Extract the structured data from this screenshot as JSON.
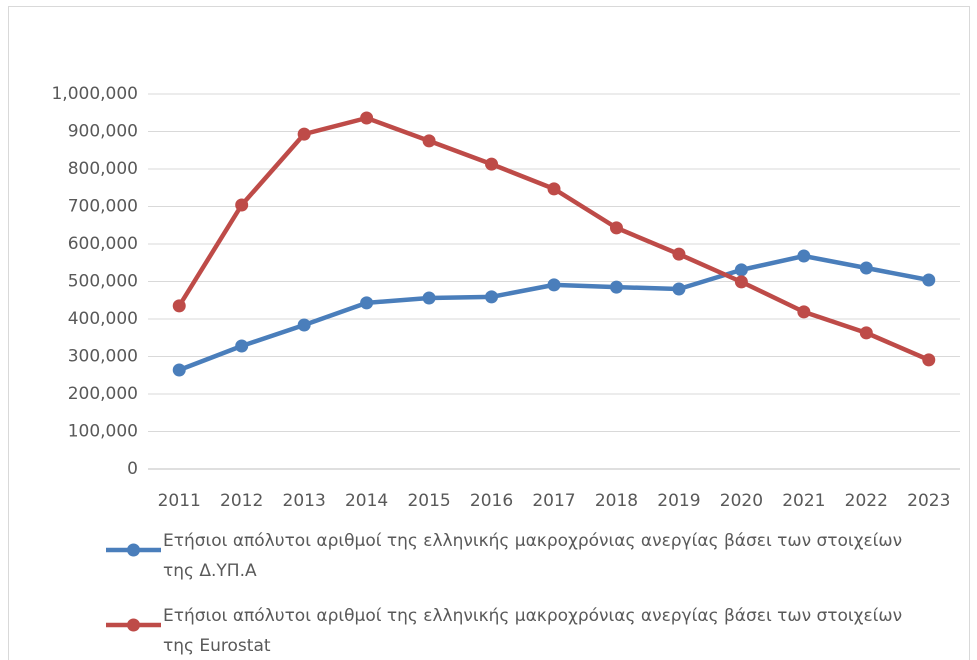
{
  "chart_data": {
    "type": "line",
    "categories": [
      "2011",
      "2012",
      "2013",
      "2014",
      "2015",
      "2016",
      "2017",
      "2018",
      "2019",
      "2020",
      "2021",
      "2022",
      "2023"
    ],
    "series": [
      {
        "name": "Ετήσιοι απόλυτοι αριθμοί της ελληνικής μακροχρόνιας ανεργίας  βάσει των στοιχείων της Δ.ΥΠ.Α",
        "color": "#4a7ebb",
        "values": [
          264000,
          328000,
          384000,
          443000,
          456000,
          459000,
          491000,
          485000,
          480000,
          531000,
          568000,
          536000,
          504000
        ]
      },
      {
        "name": "Ετήσιοι απόλυτοι αριθμοί της ελληνικής μακροχρόνιας ανεργίας  βάσει των στοιχείων της Eurostat",
        "color": "#be4b48",
        "values": [
          435000,
          704000,
          893000,
          936000,
          875000,
          813000,
          747000,
          643000,
          573000,
          499000,
          419000,
          363000,
          291000
        ]
      }
    ],
    "ylim": [
      0,
      1000000
    ],
    "yticks": [
      0,
      {
        "value": 100000,
        "label": "100,000"
      },
      {
        "value": 200000,
        "label": "200,000"
      },
      {
        "value": 300000,
        "label": "300,000"
      },
      {
        "value": 400000,
        "label": "400,000"
      },
      {
        "value": 500000,
        "label": "500,000"
      },
      {
        "value": 600000,
        "label": "600,000"
      },
      {
        "value": 700000,
        "label": "700,000"
      },
      {
        "value": 800000,
        "label": "800,000"
      },
      {
        "value": 900000,
        "label": "900,000"
      },
      {
        "value": 1000000,
        "label": "1,000,000"
      }
    ],
    "grid": true
  }
}
